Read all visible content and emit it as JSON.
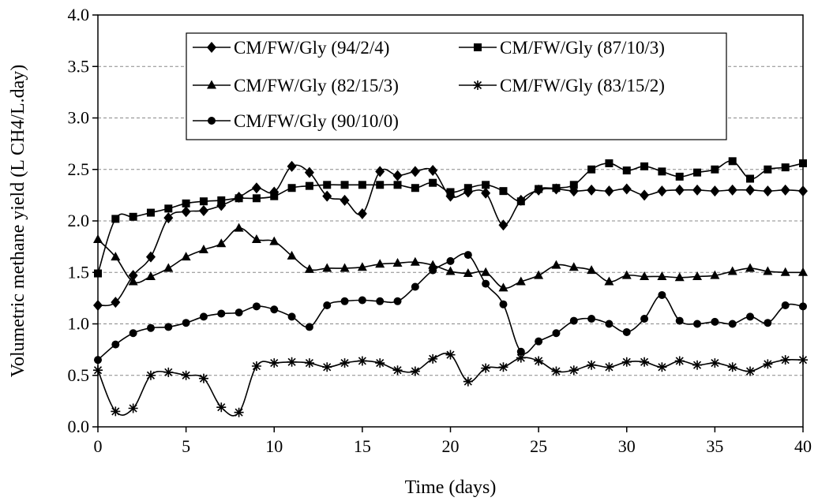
{
  "chart_data": {
    "type": "line",
    "title": "",
    "xlabel": "Time (days)",
    "ylabel": "Volumetric methane yield (L CH4/L.day)",
    "xlim": [
      0,
      40
    ],
    "ylim": [
      0,
      4.0
    ],
    "x_ticks": [
      "0",
      "5",
      "10",
      "15",
      "20",
      "25",
      "30",
      "35",
      "40"
    ],
    "y_ticks": [
      "0.0",
      "0.5",
      "1.0",
      "1.5",
      "2.0",
      "2.5",
      "3.0",
      "3.5",
      "4.0"
    ],
    "grid": "horizontal-dashed",
    "legend_position": "top-left",
    "line_color": "#000000",
    "series": [
      {
        "name": "CM/FW/Gly (94/2/4)",
        "marker": "diamond",
        "x": [
          0,
          1,
          2,
          3,
          4,
          5,
          6,
          7,
          8,
          9,
          10,
          11,
          12,
          13,
          14,
          15,
          16,
          17,
          18,
          19,
          20,
          21,
          22,
          23,
          24,
          25,
          26,
          27,
          28,
          29,
          30,
          31,
          32,
          33,
          34,
          35,
          36,
          37,
          38,
          39,
          40
        ],
        "values": [
          1.18,
          1.21,
          1.47,
          1.65,
          2.03,
          2.09,
          2.1,
          2.15,
          2.23,
          2.32,
          2.28,
          2.53,
          2.47,
          2.24,
          2.2,
          2.07,
          2.48,
          2.44,
          2.48,
          2.49,
          2.24,
          2.28,
          2.27,
          1.96,
          2.2,
          2.3,
          2.31,
          2.29,
          2.3,
          2.29,
          2.31,
          2.25,
          2.29,
          2.3,
          2.3,
          2.29,
          2.3,
          2.3,
          2.29,
          2.3,
          2.29
        ]
      },
      {
        "name": "CM/FW/Gly (87/10/3)",
        "marker": "square",
        "x": [
          0,
          1,
          2,
          3,
          4,
          5,
          6,
          7,
          8,
          9,
          10,
          11,
          12,
          13,
          14,
          15,
          16,
          17,
          18,
          19,
          20,
          21,
          22,
          23,
          24,
          25,
          26,
          27,
          28,
          29,
          30,
          31,
          32,
          33,
          34,
          35,
          36,
          37,
          38,
          39,
          40
        ],
        "values": [
          1.49,
          2.02,
          2.04,
          2.08,
          2.12,
          2.17,
          2.19,
          2.2,
          2.22,
          2.22,
          2.24,
          2.32,
          2.34,
          2.35,
          2.35,
          2.35,
          2.35,
          2.35,
          2.32,
          2.37,
          2.28,
          2.32,
          2.35,
          2.29,
          2.19,
          2.31,
          2.32,
          2.35,
          2.5,
          2.56,
          2.49,
          2.53,
          2.48,
          2.43,
          2.47,
          2.5,
          2.58,
          2.41,
          2.5,
          2.52,
          2.56
        ]
      },
      {
        "name": "CM/FW/Gly (82/15/3)",
        "marker": "triangle",
        "x": [
          0,
          1,
          2,
          3,
          4,
          5,
          6,
          7,
          8,
          9,
          10,
          11,
          12,
          13,
          14,
          15,
          16,
          17,
          18,
          19,
          20,
          21,
          22,
          23,
          24,
          25,
          26,
          27,
          28,
          29,
          30,
          31,
          32,
          33,
          34,
          35,
          36,
          37,
          38,
          39,
          40
        ],
        "values": [
          1.82,
          1.65,
          1.41,
          1.46,
          1.54,
          1.65,
          1.72,
          1.78,
          1.93,
          1.82,
          1.8,
          1.66,
          1.53,
          1.54,
          1.54,
          1.55,
          1.58,
          1.59,
          1.6,
          1.57,
          1.51,
          1.49,
          1.5,
          1.35,
          1.41,
          1.47,
          1.57,
          1.55,
          1.52,
          1.41,
          1.47,
          1.46,
          1.46,
          1.45,
          1.46,
          1.47,
          1.51,
          1.54,
          1.51,
          1.5,
          1.5
        ]
      },
      {
        "name": "CM/FW/Gly (83/15/2)",
        "marker": "asterisk",
        "x": [
          0,
          1,
          2,
          3,
          4,
          5,
          6,
          7,
          8,
          9,
          10,
          11,
          12,
          13,
          14,
          15,
          16,
          17,
          18,
          19,
          20,
          21,
          22,
          23,
          24,
          25,
          26,
          27,
          28,
          29,
          30,
          31,
          32,
          33,
          34,
          35,
          36,
          37,
          38,
          39,
          40
        ],
        "values": [
          0.55,
          0.15,
          0.18,
          0.5,
          0.53,
          0.5,
          0.47,
          0.19,
          0.14,
          0.59,
          0.62,
          0.63,
          0.62,
          0.58,
          0.62,
          0.64,
          0.62,
          0.55,
          0.54,
          0.66,
          0.7,
          0.44,
          0.57,
          0.58,
          0.67,
          0.64,
          0.54,
          0.55,
          0.6,
          0.58,
          0.63,
          0.63,
          0.58,
          0.64,
          0.6,
          0.62,
          0.58,
          0.54,
          0.61,
          0.65,
          0.65
        ]
      },
      {
        "name": "CM/FW/Gly (90/10/0)",
        "marker": "circle",
        "x": [
          0,
          1,
          2,
          3,
          4,
          5,
          6,
          7,
          8,
          9,
          10,
          11,
          12,
          13,
          14,
          15,
          16,
          17,
          18,
          19,
          20,
          21,
          22,
          23,
          24,
          25,
          26,
          27,
          28,
          29,
          30,
          31,
          32,
          33,
          34,
          35,
          36,
          37,
          38,
          39,
          40
        ],
        "values": [
          0.65,
          0.8,
          0.91,
          0.96,
          0.97,
          1.01,
          1.07,
          1.1,
          1.11,
          1.17,
          1.14,
          1.07,
          0.97,
          1.18,
          1.22,
          1.23,
          1.22,
          1.22,
          1.36,
          1.52,
          1.61,
          1.67,
          1.39,
          1.19,
          0.73,
          0.83,
          0.91,
          1.03,
          1.05,
          1.0,
          0.92,
          1.05,
          1.28,
          1.03,
          1.0,
          1.02,
          1.0,
          1.07,
          1.01,
          1.18,
          1.17
        ]
      }
    ]
  }
}
